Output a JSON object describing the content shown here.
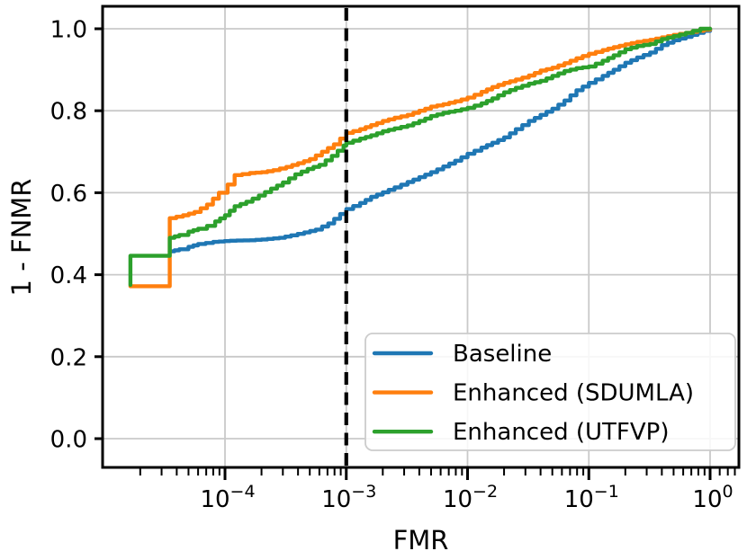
{
  "figure": {
    "background": "#ffffff"
  },
  "chart_data": {
    "type": "line",
    "title": "",
    "xlabel": "FMR",
    "ylabel": "1 - FNMR",
    "x_scale": "log10",
    "xlim": [
      1e-05,
      1.7
    ],
    "ylim": [
      -0.07,
      1.055
    ],
    "grid": true,
    "grid_color": "#c9c9c9",
    "x_ticks": {
      "major_exponents": [
        -4,
        -3,
        -2,
        -1,
        0
      ],
      "labels": [
        "10⁻⁴",
        "10⁻³",
        "10⁻²",
        "10⁻¹",
        "10⁰"
      ],
      "minor_subs": [
        2,
        3,
        4,
        5,
        6,
        7,
        8,
        9
      ],
      "minor_decades": [
        -5,
        -4,
        -3,
        -2,
        -1
      ],
      "minor_extra": [
        1.2,
        1.4,
        1.6
      ]
    },
    "y_ticks": {
      "values": [
        0.0,
        0.2,
        0.4,
        0.6,
        0.8,
        1.0
      ],
      "labels": [
        "0.0",
        "0.2",
        "0.4",
        "0.6",
        "0.8",
        "1.0"
      ]
    },
    "threshold_line": {
      "x": 0.001,
      "style": "dashed",
      "color": "#000000"
    },
    "legend": {
      "location": "lower right",
      "entries": [
        "Baseline",
        "Enhanced (SDUMLA)",
        "Enhanced (UTFVP)"
      ]
    },
    "series": [
      {
        "name": "Baseline",
        "color": "#1f77b4",
        "points": [
          [
            3.5e-05,
            0.457
          ],
          [
            4.2e-05,
            0.462
          ],
          [
            5e-05,
            0.468
          ],
          [
            6e-05,
            0.475
          ],
          [
            8e-05,
            0.48
          ],
          [
            0.00011,
            0.483
          ],
          [
            0.00016,
            0.484
          ],
          [
            0.0002,
            0.486
          ],
          [
            0.00028,
            0.49
          ],
          [
            0.00035,
            0.496
          ],
          [
            0.00045,
            0.503
          ],
          [
            0.00056,
            0.51
          ],
          [
            0.00071,
            0.525
          ],
          [
            0.00089,
            0.548
          ],
          [
            0.001,
            0.56
          ],
          [
            0.0013,
            0.575
          ],
          [
            0.0016,
            0.59
          ],
          [
            0.002,
            0.601
          ],
          [
            0.0025,
            0.613
          ],
          [
            0.0032,
            0.626
          ],
          [
            0.004,
            0.638
          ],
          [
            0.005,
            0.65
          ],
          [
            0.0063,
            0.664
          ],
          [
            0.0079,
            0.678
          ],
          [
            0.01,
            0.695
          ],
          [
            0.013,
            0.71
          ],
          [
            0.016,
            0.722
          ],
          [
            0.02,
            0.735
          ],
          [
            0.025,
            0.755
          ],
          [
            0.032,
            0.775
          ],
          [
            0.04,
            0.79
          ],
          [
            0.05,
            0.805
          ],
          [
            0.063,
            0.825
          ],
          [
            0.079,
            0.85
          ],
          [
            0.1,
            0.868
          ],
          [
            0.13,
            0.885
          ],
          [
            0.16,
            0.9
          ],
          [
            0.2,
            0.917
          ],
          [
            0.25,
            0.93
          ],
          [
            0.32,
            0.942
          ],
          [
            0.4,
            0.96
          ],
          [
            0.5,
            0.972
          ],
          [
            0.63,
            0.98
          ],
          [
            0.79,
            0.99
          ],
          [
            1.0,
            1.0
          ]
        ]
      },
      {
        "name": "Enhanced (SDUMLA)",
        "color": "#ff7f0e",
        "points": [
          [
            1.66e-05,
            0.372
          ],
          [
            3.5e-05,
            0.372
          ],
          [
            3.5e-05,
            0.538
          ],
          [
            4.5e-05,
            0.545
          ],
          [
            5.6e-05,
            0.553
          ],
          [
            7.1e-05,
            0.571
          ],
          [
            8.9e-05,
            0.6
          ],
          [
            0.000105,
            0.62
          ],
          [
            0.00012,
            0.643
          ],
          [
            0.00016,
            0.648
          ],
          [
            0.0002,
            0.65
          ],
          [
            0.00025,
            0.655
          ],
          [
            0.00032,
            0.663
          ],
          [
            0.0004,
            0.672
          ],
          [
            0.0005,
            0.682
          ],
          [
            0.00063,
            0.7
          ],
          [
            0.00079,
            0.718
          ],
          [
            0.001,
            0.746
          ],
          [
            0.0013,
            0.755
          ],
          [
            0.0016,
            0.765
          ],
          [
            0.002,
            0.775
          ],
          [
            0.0025,
            0.783
          ],
          [
            0.0032,
            0.79
          ],
          [
            0.004,
            0.8
          ],
          [
            0.005,
            0.81
          ],
          [
            0.0063,
            0.816
          ],
          [
            0.0079,
            0.823
          ],
          [
            0.01,
            0.832
          ],
          [
            0.013,
            0.846
          ],
          [
            0.016,
            0.858
          ],
          [
            0.02,
            0.868
          ],
          [
            0.025,
            0.876
          ],
          [
            0.032,
            0.886
          ],
          [
            0.04,
            0.898
          ],
          [
            0.05,
            0.905
          ],
          [
            0.063,
            0.916
          ],
          [
            0.079,
            0.928
          ],
          [
            0.1,
            0.939
          ],
          [
            0.13,
            0.948
          ],
          [
            0.16,
            0.955
          ],
          [
            0.2,
            0.962
          ],
          [
            0.25,
            0.968
          ],
          [
            0.32,
            0.973
          ],
          [
            0.4,
            0.979
          ],
          [
            0.5,
            0.985
          ],
          [
            0.63,
            0.99
          ],
          [
            0.79,
            0.995
          ],
          [
            1.0,
            1.0
          ]
        ]
      },
      {
        "name": "Enhanced (UTFVP)",
        "color": "#2ca02c",
        "points": [
          [
            1.66e-05,
            0.375
          ],
          [
            1.66e-05,
            0.446
          ],
          [
            3.5e-05,
            0.446
          ],
          [
            3.5e-05,
            0.49
          ],
          [
            4.2e-05,
            0.497
          ],
          [
            5e-05,
            0.505
          ],
          [
            6e-05,
            0.512
          ],
          [
            7.1e-05,
            0.519
          ],
          [
            8.3e-05,
            0.53
          ],
          [
            0.0001,
            0.545
          ],
          [
            0.00012,
            0.567
          ],
          [
            0.00015,
            0.578
          ],
          [
            0.00019,
            0.593
          ],
          [
            0.00024,
            0.61
          ],
          [
            0.0003,
            0.625
          ],
          [
            0.00038,
            0.645
          ],
          [
            0.00048,
            0.658
          ],
          [
            0.0006,
            0.668
          ],
          [
            0.00076,
            0.69
          ],
          [
            0.00095,
            0.715
          ],
          [
            0.001,
            0.722
          ],
          [
            0.0013,
            0.732
          ],
          [
            0.0016,
            0.74
          ],
          [
            0.002,
            0.75
          ],
          [
            0.0025,
            0.757
          ],
          [
            0.0032,
            0.764
          ],
          [
            0.004,
            0.775
          ],
          [
            0.005,
            0.787
          ],
          [
            0.0063,
            0.795
          ],
          [
            0.0079,
            0.8
          ],
          [
            0.01,
            0.807
          ],
          [
            0.013,
            0.818
          ],
          [
            0.016,
            0.83
          ],
          [
            0.02,
            0.845
          ],
          [
            0.025,
            0.856
          ],
          [
            0.032,
            0.866
          ],
          [
            0.04,
            0.873
          ],
          [
            0.05,
            0.885
          ],
          [
            0.063,
            0.897
          ],
          [
            0.079,
            0.904
          ],
          [
            0.1,
            0.908
          ],
          [
            0.13,
            0.922
          ],
          [
            0.16,
            0.935
          ],
          [
            0.2,
            0.95
          ],
          [
            0.25,
            0.958
          ],
          [
            0.32,
            0.963
          ],
          [
            0.4,
            0.975
          ],
          [
            0.5,
            0.982
          ],
          [
            0.63,
            0.99
          ],
          [
            0.83,
            1.0
          ],
          [
            1.0,
            1.0
          ]
        ]
      }
    ]
  }
}
